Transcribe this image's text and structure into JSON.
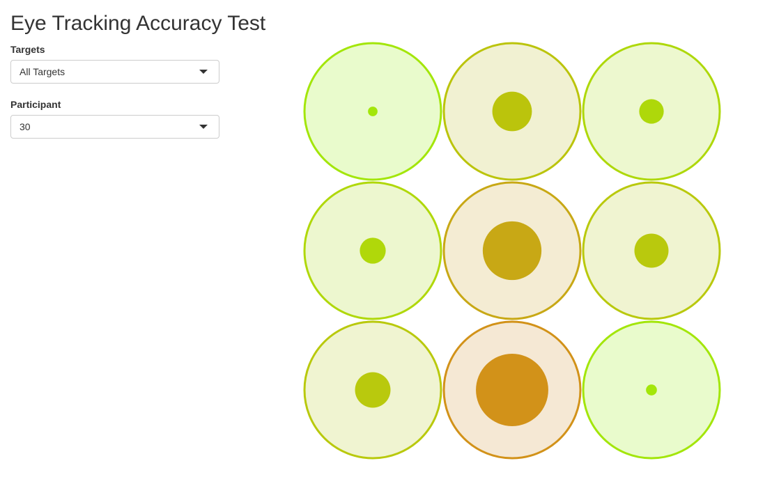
{
  "title": "Eye Tracking Accuracy Test",
  "targets_control": {
    "label": "Targets",
    "selected": "All Targets"
  },
  "participant_control": {
    "label": "Participant",
    "selected": "30"
  },
  "icons": {
    "dropdown": "caret-down-icon"
  },
  "chart_data": {
    "type": "scatter",
    "description_grid": "3x3 target grid",
    "rows": 3,
    "cols": 3,
    "targets": [
      {
        "row": 1,
        "col": 1,
        "error": 0.07,
        "color": "#a3e60a",
        "fill": "#e9fbcc"
      },
      {
        "row": 1,
        "col": 2,
        "error": 0.29,
        "color": "#bbc40c",
        "fill": "#f1f1d2"
      },
      {
        "row": 1,
        "col": 3,
        "error": 0.18,
        "color": "#aed80a",
        "fill": "#edf8cf"
      },
      {
        "row": 2,
        "col": 1,
        "error": 0.19,
        "color": "#b0d80a",
        "fill": "#edf7cf"
      },
      {
        "row": 2,
        "col": 2,
        "error": 0.43,
        "color": "#c8a815",
        "fill": "#f4ecd3"
      },
      {
        "row": 2,
        "col": 3,
        "error": 0.25,
        "color": "#b9c90d",
        "fill": "#f0f4d1"
      },
      {
        "row": 3,
        "col": 1,
        "error": 0.26,
        "color": "#b9c90d",
        "fill": "#f0f4d1"
      },
      {
        "row": 3,
        "col": 2,
        "error": 0.53,
        "color": "#d29219",
        "fill": "#f5e8d4"
      },
      {
        "row": 3,
        "col": 3,
        "error": 0.08,
        "color": "#a3e60a",
        "fill": "#e9fbcc"
      }
    ]
  }
}
